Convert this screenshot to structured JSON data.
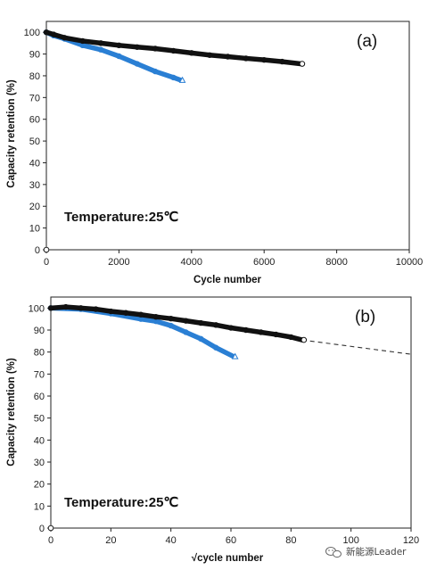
{
  "chart_data": [
    {
      "type": "scatter",
      "panel_label": "(a)",
      "annotation": "Temperature:25℃",
      "xlabel": "Cycle number",
      "ylabel": "Capacity retention (%)",
      "xlim": [
        0,
        10000
      ],
      "ylim": [
        0,
        105
      ],
      "xticks": [
        0,
        2000,
        4000,
        6000,
        8000,
        10000
      ],
      "yticks": [
        0,
        10,
        20,
        30,
        40,
        50,
        60,
        70,
        80,
        90,
        100
      ],
      "grid": false,
      "series": [
        {
          "color": "#111111",
          "marker": "circle",
          "end_marker": "open-circle",
          "x": [
            0,
            200,
            500,
            1000,
            1500,
            2000,
            2500,
            3000,
            3500,
            4000,
            4500,
            5000,
            5500,
            6000,
            6500,
            7000
          ],
          "y": [
            100,
            99,
            97.5,
            96,
            95,
            94,
            93.2,
            92.5,
            91.5,
            90.5,
            89.5,
            88.8,
            88,
            87.3,
            86.5,
            85.5
          ]
        },
        {
          "color": "#2a7fd4",
          "marker": "circle",
          "end_marker": "open-triangle",
          "x": [
            0,
            200,
            500,
            1000,
            1500,
            2000,
            2500,
            3000,
            3500,
            3700
          ],
          "y": [
            100,
            98.5,
            97,
            94,
            92,
            89,
            85.5,
            82,
            79.2,
            78
          ]
        }
      ]
    },
    {
      "type": "scatter",
      "panel_label": "(b)",
      "annotation": "Temperature:25℃",
      "xlabel": "√cycle number",
      "ylabel": "Capacity retention (%)",
      "xlim": [
        0,
        120
      ],
      "ylim": [
        0,
        105
      ],
      "xticks": [
        0,
        20,
        40,
        60,
        80,
        100,
        120
      ],
      "yticks": [
        0,
        10,
        20,
        30,
        40,
        50,
        60,
        70,
        80,
        90,
        100
      ],
      "grid": false,
      "series": [
        {
          "color": "#111111",
          "marker": "circle",
          "end_marker": "open-circle",
          "x": [
            0,
            5,
            10,
            15,
            20,
            25,
            30,
            35,
            40,
            45,
            50,
            55,
            60,
            65,
            70,
            75,
            80,
            83.7
          ],
          "y": [
            100,
            100.5,
            100,
            99.5,
            98.5,
            97.8,
            97,
            96,
            95.2,
            94.2,
            93.2,
            92.3,
            91,
            90,
            89,
            88,
            86.8,
            85.5
          ]
        },
        {
          "color": "#2a7fd4",
          "marker": "circle",
          "end_marker": "open-triangle",
          "x": [
            0,
            10,
            20,
            30,
            35,
            40,
            45,
            50,
            55,
            60.8
          ],
          "y": [
            100,
            99.5,
            97.5,
            95,
            94,
            92,
            89,
            86,
            82,
            78
          ]
        }
      ],
      "extrapolation": {
        "style": "dashed",
        "x": [
          83.7,
          120
        ],
        "y": [
          85.5,
          79
        ]
      }
    }
  ],
  "watermark": {
    "icon": "wechat-icon",
    "text": "新能源Leader"
  }
}
